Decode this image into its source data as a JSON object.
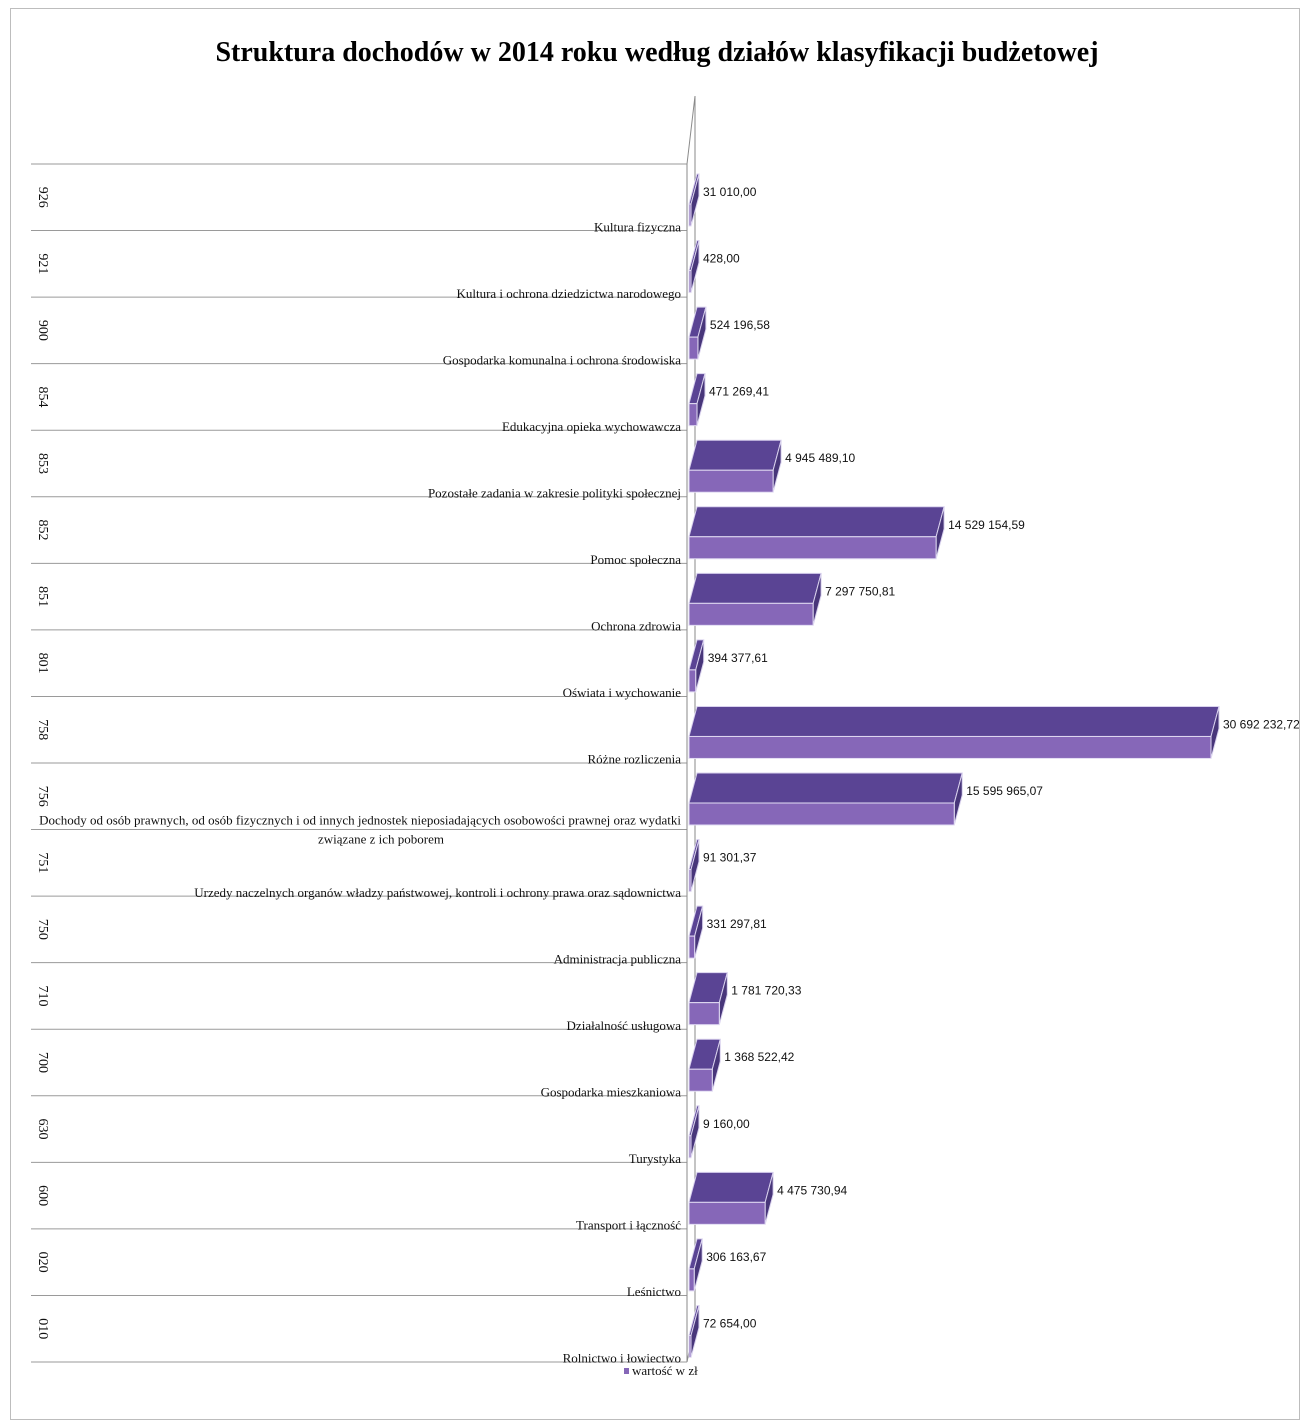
{
  "chart_data": {
    "type": "bar",
    "orientation": "horizontal",
    "title": "Struktura dochodów w 2014 roku według działów klasyfikacji budżetowej",
    "legend": {
      "position": "bottom",
      "label": "wartość w zł"
    },
    "categories": [
      {
        "code": "926",
        "name": "Kultura fizyczna"
      },
      {
        "code": "921",
        "name": "Kultura i ochrona dziedzictwa narodowego"
      },
      {
        "code": "900",
        "name": "Gospodarka komunalna i ochrona środowiska"
      },
      {
        "code": "854",
        "name": "Edukacyjna opieka wychowawcza"
      },
      {
        "code": "853",
        "name": "Pozostałe zadania w zakresie polityki społecznej"
      },
      {
        "code": "852",
        "name": "Pomoc społeczna"
      },
      {
        "code": "851",
        "name": "Ochrona zdrowia"
      },
      {
        "code": "801",
        "name": "Oświata i wychowanie"
      },
      {
        "code": "758",
        "name": "Różne rozliczenia"
      },
      {
        "code": "756",
        "name": "Dochody od osób prawnych, od osób fizycznych i od innych jednostek nieposiadających osobowości prawnej oraz wydatki związane z ich poborem",
        "name_lines": [
          "Dochody od osób prawnych, od osób fizycznych i od innych jednostek nieposiadających osobowości prawnej oraz wydatki",
          "związane z ich poborem"
        ]
      },
      {
        "code": "751",
        "name": "Urzedy naczelnych organów władzy państwowej, kontroli i ochrony prawa oraz sądownictwa"
      },
      {
        "code": "750",
        "name": "Administracja publiczna"
      },
      {
        "code": "710",
        "name": "Działalność usługowa"
      },
      {
        "code": "700",
        "name": "Gospodarka mieszkaniowa"
      },
      {
        "code": "630",
        "name": "Turystyka"
      },
      {
        "code": "600",
        "name": "Transport i łączność"
      },
      {
        "code": "020",
        "name": "Leśnictwo"
      },
      {
        "code": "010",
        "name": "Rolnictwo i łowiectwo"
      }
    ],
    "series": [
      {
        "name": "wartość w zł",
        "values": [
          31010.0,
          428.0,
          524196.58,
          471269.41,
          4945489.1,
          14529154.59,
          7297750.81,
          394377.61,
          30692232.72,
          15595965.07,
          91301.37,
          331297.81,
          1781720.33,
          1368522.42,
          9160.0,
          4475730.94,
          306163.67,
          72654.0
        ],
        "value_labels": [
          "31 010,00",
          "428,00",
          "524 196,58",
          "471 269,41",
          "4 945 489,10",
          "14 529 154,59",
          "7 297 750,81",
          "394 377,61",
          "30 692 232,72",
          "15 595 965,07",
          "91 301,37",
          "331 297,81",
          "1 781 720,33",
          "1 368 522,42",
          "9 160,00",
          "4 475 730,94",
          "306 163,67",
          "72 654,00"
        ]
      }
    ],
    "xlim": [
      0,
      30692232.72
    ],
    "colors": {
      "bar_front": "#8667b8",
      "bar_top": "#5a4494",
      "bar_end": "#48367a",
      "grid": "#9a9a9a"
    }
  }
}
